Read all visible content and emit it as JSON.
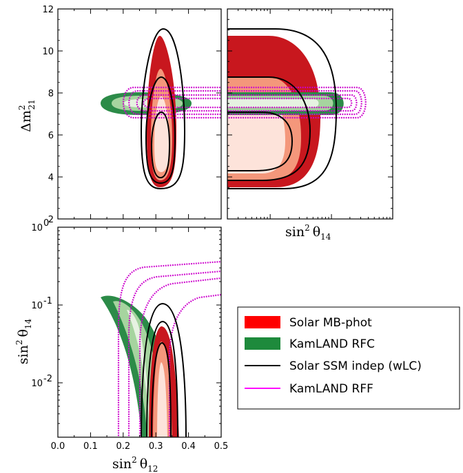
{
  "chart_data": [
    {
      "panel": "top-left",
      "type": "contour",
      "x_axis": {
        "label": "",
        "range": [
          0.0,
          0.5
        ]
      },
      "y_axis": {
        "label_base": "Δm",
        "label_sup": "2",
        "label_sub": "21",
        "range": [
          2,
          12
        ],
        "ticks": [
          "2",
          "4",
          "6",
          "8",
          "10",
          "12"
        ]
      },
      "series": [
        {
          "name": "Solar MB-phot",
          "center": [
            0.32,
            6.0
          ],
          "levels": [
            [
              0.3,
              0.34,
              4.6,
              7.8
            ],
            [
              0.29,
              0.35,
              4.0,
              9.2
            ],
            [
              0.28,
              0.355,
              3.4,
              10.7
            ]
          ]
        },
        {
          "name": "KamLAND RFC",
          "center": [
            0.3,
            7.4
          ],
          "levels": [
            [
              0.25,
              0.34,
              7.2,
              7.6
            ],
            [
              0.2,
              0.38,
              6.95,
              7.85
            ],
            [
              0.15,
              0.42,
              6.7,
              8.2
            ]
          ]
        },
        {
          "name": "Solar SSM indep (wLC)",
          "levels": [
            [
              0.29,
              0.34,
              4.6,
              7.1
            ],
            [
              0.28,
              0.355,
              3.8,
              8.7
            ],
            [
              0.27,
              0.38,
              3.3,
              11.0
            ]
          ]
        },
        {
          "name": "KamLAND RFF",
          "levels": [
            [
              0.19,
              0.5,
              7.1,
              7.7
            ],
            [
              0.18,
              0.5,
              6.95,
              7.9
            ],
            [
              0.17,
              0.5,
              6.8,
              8.1
            ],
            [
              0.16,
              0.5,
              6.65,
              8.25
            ]
          ]
        }
      ]
    },
    {
      "panel": "top-right",
      "type": "contour",
      "x_axis": {
        "label_base": "sin",
        "label_sup": "2",
        "label_sym": "θ",
        "label_sub": "14",
        "scale": "log",
        "range": [
          0.002,
          1.0
        ]
      },
      "y_axis": {
        "label": "",
        "range": [
          2,
          12
        ]
      },
      "series": [
        {
          "name": "Solar MB-phot"
        },
        {
          "name": "KamLAND RFC"
        },
        {
          "name": "Solar SSM indep (wLC)"
        },
        {
          "name": "KamLAND RFF"
        }
      ]
    },
    {
      "panel": "bottom-left",
      "type": "contour",
      "x_axis": {
        "label_base": "sin",
        "label_sup": "2",
        "label_sym": "θ",
        "label_sub": "12",
        "range": [
          0.0,
          0.5
        ],
        "ticks": [
          "0.0",
          "0.1",
          "0.2",
          "0.3",
          "0.4",
          "0.5"
        ]
      },
      "y_axis": {
        "label_base": "sin",
        "label_sup": "2",
        "label_sym": "θ",
        "label_sub": "14",
        "scale": "log",
        "range": [
          0.002,
          1.0
        ],
        "ticks": [
          {
            "b": "10",
            "e": "0"
          },
          {
            "b": "10",
            "e": "-1"
          },
          {
            "b": "10",
            "e": "-2"
          }
        ]
      },
      "series": [
        {
          "name": "Solar MB-phot"
        },
        {
          "name": "KamLAND RFC"
        },
        {
          "name": "Solar SSM indep (wLC)"
        },
        {
          "name": "KamLAND RFF"
        }
      ]
    }
  ],
  "legend": {
    "placement": "bottom-right",
    "entries": [
      {
        "label": "Solar MB-phot",
        "color": "#ff0000",
        "kind": "patch"
      },
      {
        "label": "KamLAND RFC",
        "color": "#1e8a3c",
        "kind": "patch"
      },
      {
        "label": "Solar SSM indep (wLC)",
        "color": "#000000",
        "kind": "line"
      },
      {
        "label": "KamLAND RFF",
        "color": "#ff00ff",
        "kind": "line"
      }
    ]
  },
  "colors": {
    "red_levels": [
      "#fde3da",
      "#f4977b",
      "#c8171e"
    ],
    "green_levels": [
      "#e6f2e1",
      "#a6d49f",
      "#2c8b48"
    ],
    "black": "#000000",
    "magenta": "#cc00cc"
  }
}
